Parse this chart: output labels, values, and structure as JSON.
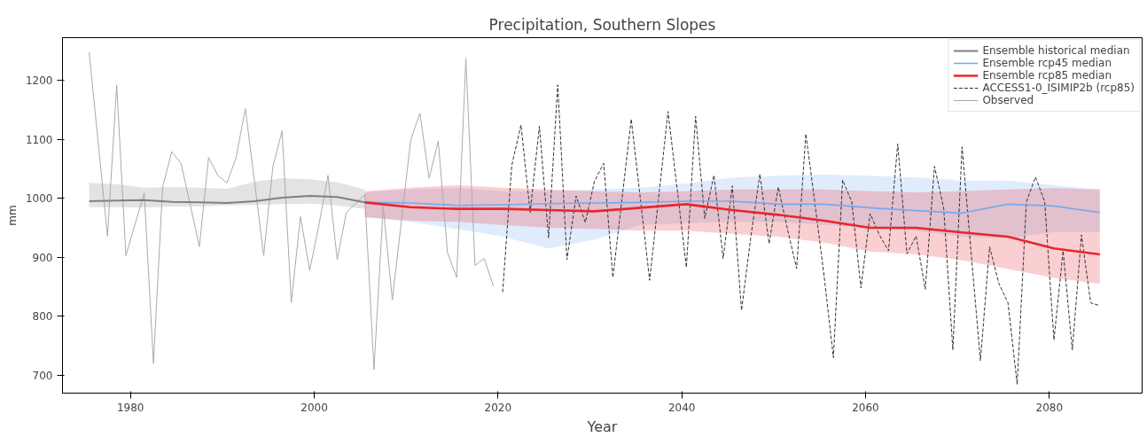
{
  "chart_data": {
    "type": "line",
    "title": "Precipitation, Southern Slopes",
    "xlabel": "Year",
    "ylabel": "mm",
    "xlim": [
      1972.6,
      2090.1
    ],
    "ylim": [
      670,
      1272
    ],
    "xticks": [
      1980,
      2000,
      2020,
      2040,
      2060,
      2080
    ],
    "yticks": [
      700,
      800,
      900,
      1000,
      1100,
      1200
    ],
    "grid": false,
    "legend": "top right",
    "marker": "none",
    "series": [
      {
        "name": "Ensemble historical median",
        "color": "#808080",
        "line_style": "solid",
        "x": [
          1975.5,
          1978.5,
          1981.5,
          1984.5,
          1987.5,
          1990.5,
          1993.5,
          1996.5,
          1999.5,
          2002.5,
          2005.5
        ],
        "values": [
          995,
          996,
          997,
          994,
          993,
          992,
          995,
          1001,
          1004,
          1002,
          993
        ],
        "lower": [
          985,
          985,
          984,
          986,
          986,
          988,
          989,
          990,
          991,
          988,
          982
        ],
        "upper": [
          1026,
          1024,
          1018,
          1019,
          1018,
          1016,
          1028,
          1034,
          1032,
          1027,
          1015
        ]
      },
      {
        "name": "Ensemble rcp45 median",
        "color": "#74a9f0",
        "line_style": "solid",
        "x": [
          2005.5,
          2010.5,
          2015.5,
          2020.5,
          2025.5,
          2030.5,
          2035.5,
          2040.5,
          2045.5,
          2050.5,
          2055.5,
          2060.5,
          2065.5,
          2070.5,
          2075.5,
          2080.5,
          2085.5
        ],
        "values": [
          993,
          992,
          988,
          989,
          991,
          992,
          993,
          995,
          995,
          990,
          990,
          984,
          979,
          975,
          990,
          987,
          976
        ],
        "lower": [
          968,
          960,
          948,
          935,
          915,
          930,
          955,
          958,
          960,
          960,
          955,
          950,
          945,
          935,
          932,
          943,
          943
        ],
        "upper": [
          1010,
          1015,
          1017,
          1012,
          1012,
          1015,
          1018,
          1025,
          1035,
          1038,
          1040,
          1038,
          1035,
          1030,
          1030,
          1022,
          1015
        ]
      },
      {
        "name": "Ensemble rcp85 median",
        "color": "#e8262d",
        "line_style": "solid",
        "x": [
          2005.5,
          2010.5,
          2015.5,
          2020.5,
          2025.5,
          2030.5,
          2035.5,
          2040.5,
          2045.5,
          2050.5,
          2055.5,
          2060.5,
          2065.5,
          2070.5,
          2075.5,
          2080.5,
          2085.5
        ],
        "values": [
          993,
          985,
          982,
          982,
          980,
          978,
          984,
          990,
          980,
          972,
          962,
          950,
          950,
          942,
          935,
          915,
          905
        ],
        "lower": [
          968,
          962,
          960,
          955,
          950,
          948,
          945,
          945,
          940,
          935,
          925,
          910,
          905,
          895,
          880,
          865,
          855
        ],
        "upper": [
          1012,
          1018,
          1022,
          1018,
          1015,
          1012,
          1010,
          1012,
          1015,
          1015,
          1015,
          1012,
          1010,
          1012,
          1015,
          1017,
          1015
        ]
      },
      {
        "name": "ACCESS1-0_ISIMIP2b (rcp85)",
        "color": "#333333",
        "line_style": "dashed",
        "x": [
          2020.5,
          2021.5,
          2022.5,
          2023.5,
          2024.5,
          2025.5,
          2026.5,
          2027.5,
          2028.5,
          2029.5,
          2030.5,
          2031.5,
          2032.5,
          2033.5,
          2034.5,
          2035.5,
          2036.5,
          2037.5,
          2038.5,
          2039.5,
          2040.5,
          2041.5,
          2042.5,
          2043.5,
          2044.5,
          2045.5,
          2046.5,
          2047.5,
          2048.5,
          2049.5,
          2050.5,
          2051.5,
          2052.5,
          2053.5,
          2054.5,
          2055.5,
          2056.5,
          2057.5,
          2058.5,
          2059.5,
          2060.5,
          2061.5,
          2062.5,
          2063.5,
          2064.5,
          2065.5,
          2066.5,
          2067.5,
          2068.5,
          2069.5,
          2070.5,
          2071.5,
          2072.5,
          2073.5,
          2074.5,
          2075.5,
          2076.5,
          2077.5,
          2078.5,
          2079.5,
          2080.5,
          2081.5,
          2082.5,
          2083.5,
          2084.5,
          2085.5
        ],
        "values": [
          841,
          1056,
          1124,
          976,
          1122,
          933,
          1192,
          896,
          1004,
          959,
          1029,
          1059,
          866,
          1000,
          1134,
          998,
          861,
          1004,
          1147,
          1015,
          883,
          1139,
          966,
          1039,
          898,
          1021,
          810,
          933,
          1041,
          923,
          1019,
          948,
          881,
          1109,
          990,
          867,
          730,
          1031,
          994,
          848,
          974,
          938,
          911,
          1092,
          906,
          936,
          846,
          1054,
          984,
          743,
          1087,
          906,
          725,
          918,
          856,
          823,
          685,
          994,
          1036,
          994,
          760,
          911,
          743,
          938,
          823,
          818
        ]
      },
      {
        "name": "Observed",
        "color": "#aaaaaa",
        "line_style": "solid",
        "x": [
          1975.5,
          1976.5,
          1977.5,
          1978.5,
          1979.5,
          1980.5,
          1981.5,
          1982.5,
          1983.5,
          1984.5,
          1985.5,
          1986.5,
          1987.5,
          1988.5,
          1989.5,
          1990.5,
          1991.5,
          1992.5,
          1993.5,
          1994.5,
          1995.5,
          1996.5,
          1997.5,
          1998.5,
          1999.5,
          2000.5,
          2001.5,
          2002.5,
          2003.5,
          2004.5,
          2005.5,
          2006.5,
          2007.5,
          2008.5,
          2009.5,
          2010.5,
          2011.5,
          2012.5,
          2013.5,
          2014.5,
          2015.5,
          2016.5,
          2017.5,
          2018.5,
          2019.5
        ],
        "values": [
          1247,
          1092,
          936,
          1192,
          903,
          956,
          1009,
          720,
          1019,
          1079,
          1059,
          989,
          918,
          1069,
          1039,
          1026,
          1069,
          1152,
          1028,
          903,
          1054,
          1114,
          823,
          969,
          878,
          954,
          1039,
          896,
          976,
          991,
          1006,
          710,
          986,
          828,
          964,
          1099,
          1144,
          1034,
          1097,
          908,
          866,
          1237,
          886,
          898,
          851
        ]
      }
    ]
  }
}
